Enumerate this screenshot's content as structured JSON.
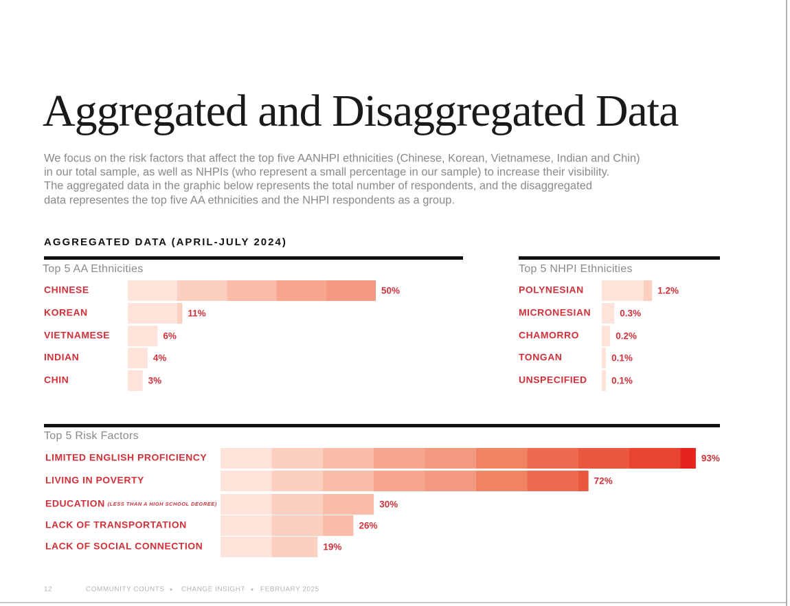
{
  "title": "Aggregated and Disaggregated Data",
  "intro": [
    "We focus on the risk factors that affect the top five AANHPI ethnicities (Chinese, Korean, Vietnamese, Indian and Chin)",
    "in our total sample, as well as NHPIs (who represent a small percentage in our sample) to increase their visibility.",
    "The aggregated data in the graphic below represents the total number of respondents, and the disaggregated",
    "data representes the top five AA ethnicities and the NHPI respondents as a group."
  ],
  "section_heading": "AGGREGATED DATA (APRIL-JULY 2024)",
  "footer": [
    "12",
    "COMMUNITY COUNTS",
    "CHANGE INSIGHT",
    "FEBRUARY 2025"
  ],
  "chart_data": [
    {
      "type": "bar",
      "title": "Top 5 AA Ethnicities",
      "categories": [
        "CHINESE",
        "KOREAN",
        "VIETNAMESE",
        "INDIAN",
        "CHIN"
      ],
      "values": [
        50,
        11,
        6,
        4,
        3
      ],
      "value_labels": [
        "50%",
        "11%",
        "6%",
        "4%",
        "3%"
      ],
      "xlim": [
        0,
        100
      ],
      "colors": [
        "#fde3da",
        "#fbd0c1",
        "#f9bca9",
        "#f7a790",
        "#f49a80",
        "#f28466",
        "#ee6a4e",
        "#eb5840",
        "#e84530",
        "#e52420"
      ]
    },
    {
      "type": "bar",
      "title": "Top 5 NHPI Ethnicities",
      "categories": [
        "POLYNESIAN",
        "MICRONESIAN",
        "CHAMORRO",
        "TONGAN",
        "UNSPECIFIED"
      ],
      "values": [
        1.2,
        0.3,
        0.2,
        0.1,
        0.1
      ],
      "value_labels": [
        "1.2%",
        "0.3%",
        "0.2%",
        "0.1%",
        "0.1%"
      ],
      "xlim": [
        0,
        2
      ],
      "colors": [
        "#fde3da",
        "#fde3da",
        "#fde3da",
        "#fde3da",
        "#fde3da",
        "#fbd0c1",
        "#f9bca9",
        "#f7a790",
        "#f49a80",
        "#f28466"
      ]
    },
    {
      "type": "bar",
      "title": "Top 5 Risk Factors",
      "categories": [
        "LIMITED ENGLISH PROFICIENCY",
        "LIVING IN POVERTY",
        "EDUCATION",
        "LACK OF TRANSPORTATION",
        "LACK OF SOCIAL CONNECTION"
      ],
      "category_notes": [
        null,
        null,
        "(LESS THAN A HIGH SCHOOL DEGREE)",
        null,
        null
      ],
      "values": [
        93,
        72,
        30,
        26,
        19
      ],
      "value_labels": [
        "93%",
        "72%",
        "30%",
        "26%",
        "19%"
      ],
      "xlim": [
        0,
        100
      ],
      "colors": [
        "#fde3da",
        "#fbd0c1",
        "#f9bca9",
        "#f7a790",
        "#f49a80",
        "#f28466",
        "#ee6a4e",
        "#eb5840",
        "#e84530",
        "#e52420"
      ]
    }
  ]
}
